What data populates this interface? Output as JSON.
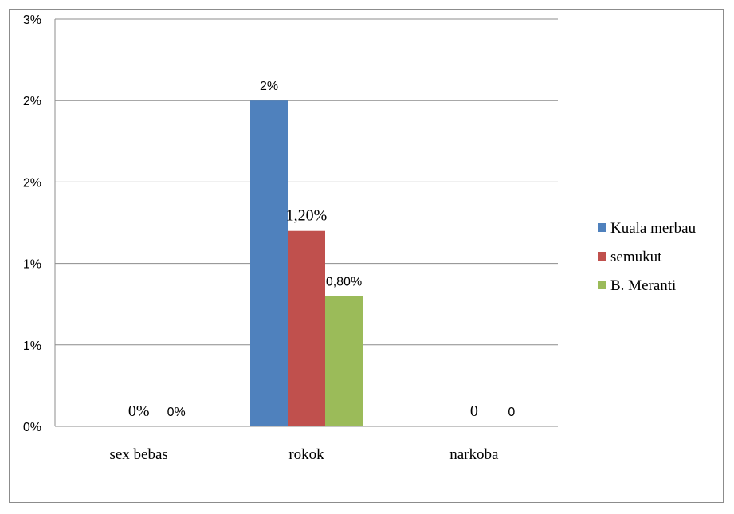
{
  "chart_data": {
    "type": "bar",
    "categories": [
      "sex bebas",
      "rokok",
      "narkoba"
    ],
    "y_tick_labels": [
      "0%",
      "1%",
      "1%",
      "2%",
      "2%",
      "3%"
    ],
    "ylim": [
      0,
      2.5
    ],
    "grid": true,
    "legend_position": "right",
    "series": [
      {
        "name": "Kuala merbau",
        "color": "#4f81bd",
        "values": [
          0,
          2.0,
          0
        ]
      },
      {
        "name": "semukut",
        "color": "#c0504d",
        "values": [
          0,
          1.2,
          0
        ]
      },
      {
        "name": "B. Meranti",
        "color": "#9bbb59",
        "values": [
          0,
          0.8,
          0
        ]
      }
    ],
    "data_labels": [
      {
        "text": "0%",
        "category": "sex bebas",
        "series": "semukut",
        "font": "serif",
        "size": 20
      },
      {
        "text": "0%",
        "category": "sex bebas",
        "series": "B. Meranti",
        "font": "sans",
        "size": 16
      },
      {
        "text": "2%",
        "category": "rokok",
        "series": "Kuala merbau",
        "font": "sans",
        "size": 16
      },
      {
        "text": "1,20%",
        "category": "rokok",
        "series": "semukut",
        "font": "serif",
        "size": 20
      },
      {
        "text": "0,80%",
        "category": "rokok",
        "series": "B. Meranti",
        "font": "sans",
        "size": 16
      },
      {
        "text": "0",
        "category": "narkoba",
        "series": "semukut",
        "font": "serif",
        "size": 20
      },
      {
        "text": "0",
        "category": "narkoba",
        "series": "B. Meranti",
        "font": "sans",
        "size": 16
      }
    ]
  }
}
